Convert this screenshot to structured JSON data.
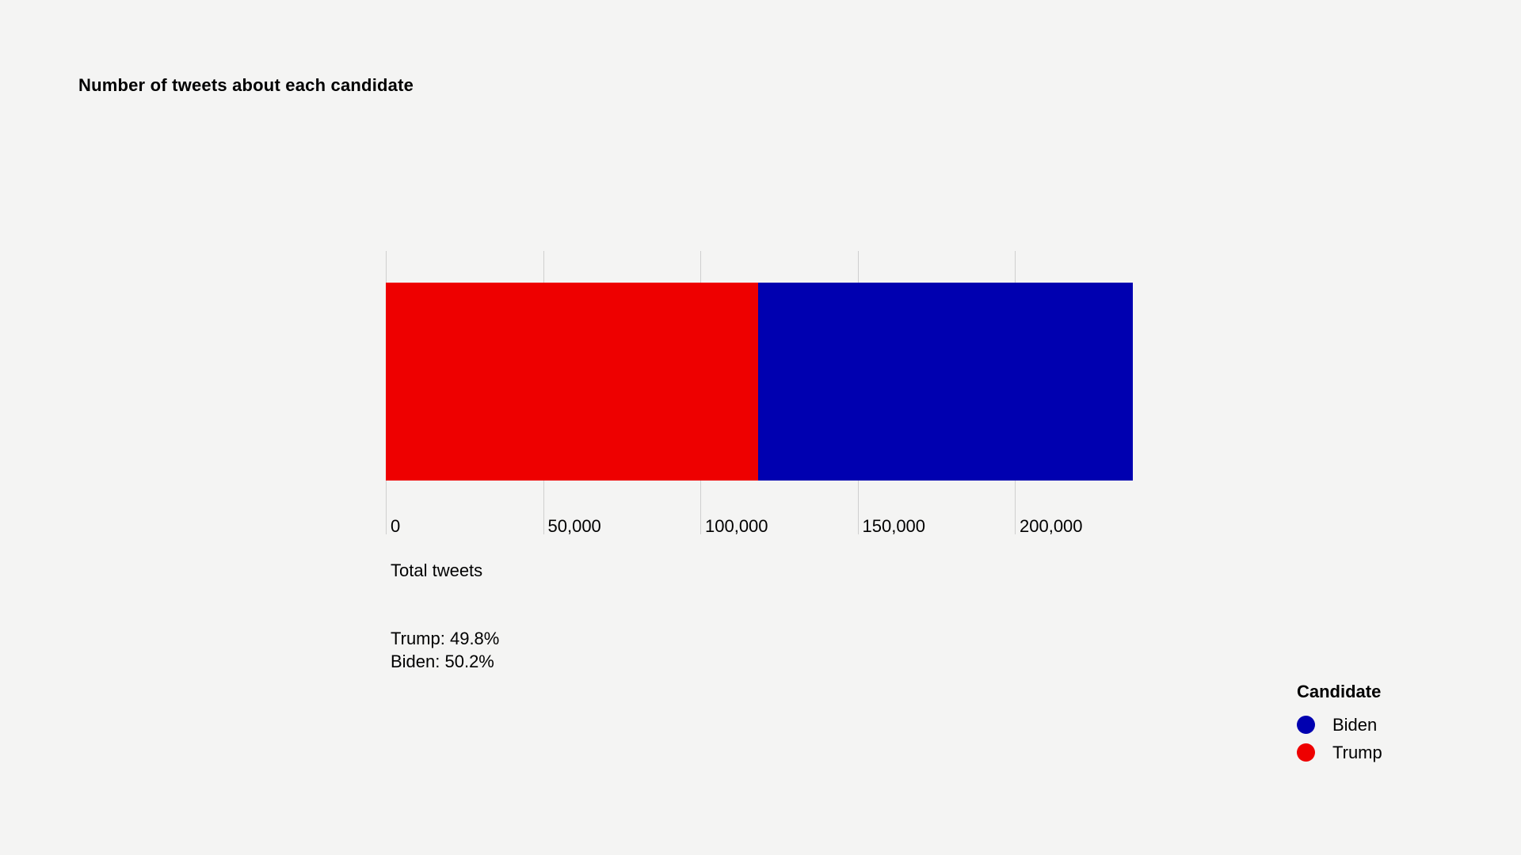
{
  "colors": {
    "background": "#f4f4f3",
    "trump_red": "#ee0000",
    "biden_blue": "#0000b0",
    "tick_line": "#cfcfcf",
    "text": "#000000"
  },
  "chart_data": {
    "type": "bar",
    "orientation": "horizontal",
    "stacked": true,
    "title": "Number of tweets about each candidate",
    "xlabel": "Total tweets",
    "xlim": [
      0,
      237500
    ],
    "grid": false,
    "series": [
      {
        "name": "Trump",
        "value": 118300,
        "percent": 49.8,
        "color": "#ee0000"
      },
      {
        "name": "Biden",
        "value": 119200,
        "percent": 50.2,
        "color": "#0000b0"
      }
    ],
    "x_ticks": [
      {
        "value": 0,
        "label": "0"
      },
      {
        "value": 50000,
        "label": "50,000"
      },
      {
        "value": 100000,
        "label": "100,000"
      },
      {
        "value": 150000,
        "label": "150,000"
      },
      {
        "value": 200000,
        "label": "200,000"
      }
    ],
    "annotations": [
      {
        "text": "Trump: 49.8%"
      },
      {
        "text": "Biden: 50.2%"
      }
    ],
    "legend": {
      "title": "Candidate",
      "position": "bottom-right",
      "items": [
        {
          "label": "Biden",
          "color": "#0000b0"
        },
        {
          "label": "Trump",
          "color": "#ee0000"
        }
      ]
    }
  }
}
